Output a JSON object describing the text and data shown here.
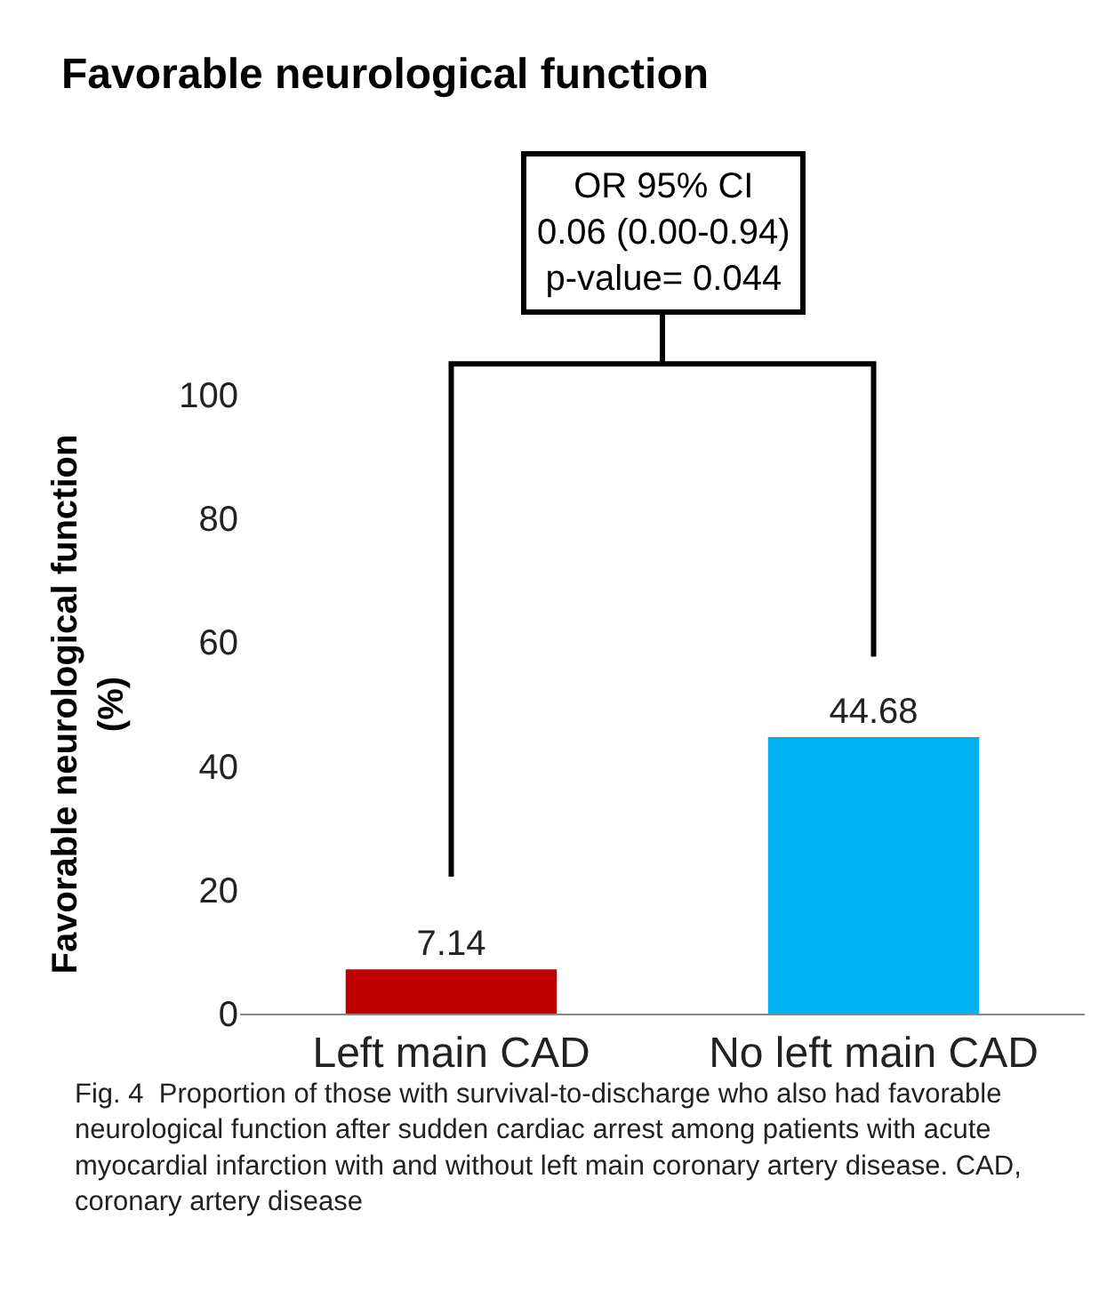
{
  "chart_data": {
    "type": "bar",
    "title": "Favorable neurological function",
    "categories": [
      "Left main CAD",
      "No left main CAD"
    ],
    "values": [
      7.14,
      44.68
    ],
    "colors": [
      "#c00000",
      "#00b0f0"
    ],
    "ylabel": "Favorable neurological function\n(%)",
    "ylim": [
      0,
      100
    ],
    "yticks": [
      0,
      20,
      40,
      60,
      80,
      100
    ],
    "grid": false,
    "data_labels": true,
    "annotations": [
      "OR 95% CI\n0.06 (0.00-0.94)\np-value= 0.044",
      "Fig. 4  Proportion of those with survival-to-discharge who also had favorable neurological function after sudden cardiac arrest among patients with acute myocardial infarction with and without left main coronary artery disease. CAD, coronary artery disease"
    ]
  }
}
